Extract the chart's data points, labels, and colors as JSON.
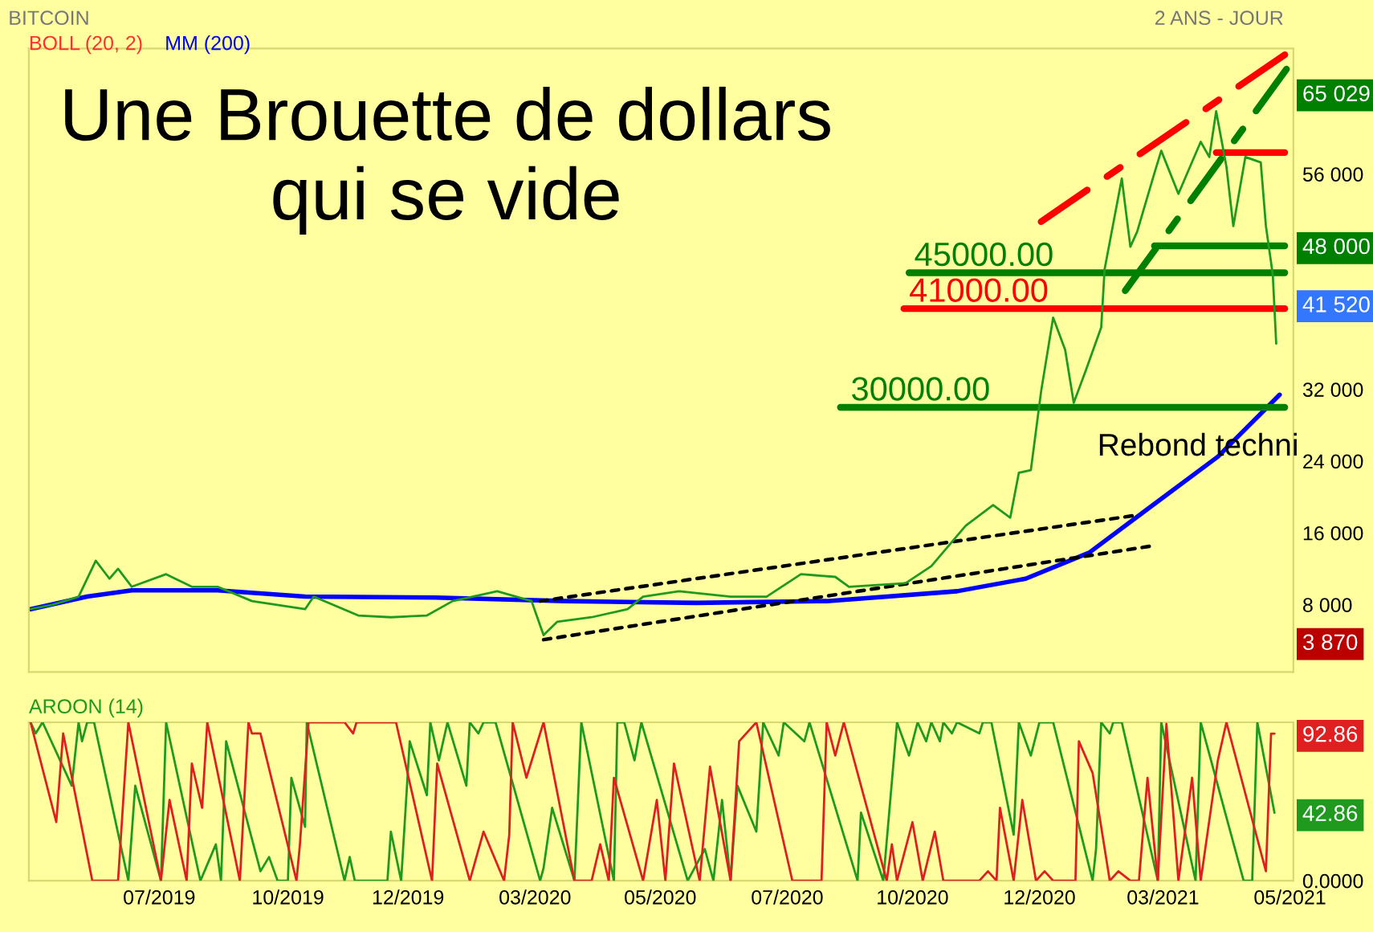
{
  "chart_data": [
    {
      "type": "line",
      "title": "BITCOIN",
      "subtitle": "2 ANS - JOUR",
      "xlim": [
        "2019-05-11",
        "2021-05-17"
      ],
      "ylim": [
        500,
        70000
      ],
      "yticks": [
        {
          "value": 8000,
          "label": "8 000"
        },
        {
          "value": 16000,
          "label": "16 000"
        },
        {
          "value": 24000,
          "label": "24 000"
        },
        {
          "value": 32000,
          "label": "32 000"
        },
        {
          "value": 48000,
          "label": "48 000"
        },
        {
          "value": 56000,
          "label": "56 000"
        },
        {
          "value": 65029,
          "label": "65 029"
        },
        {
          "value": 41520,
          "label": "41 520"
        },
        {
          "value": 3870,
          "label": "3 870"
        }
      ],
      "tick_labels": "y",
      "grid": false,
      "legend": false,
      "series": [
        {
          "color": "#1f9a1f",
          "x": [
            "2019-05-12",
            "2019-05-25",
            "2019-06-09",
            "2019-06-19",
            "2019-06-27",
            "2019-07-02",
            "2019-07-10",
            "2019-07-30",
            "2019-08-14",
            "2019-08-29",
            "2019-09-18",
            "2019-10-19",
            "2019-10-24",
            "2019-11-19",
            "2019-12-08",
            "2019-12-29",
            "2020-01-13",
            "2020-02-08",
            "2020-02-28",
            "2020-03-06",
            "2020-03-14",
            "2020-04-03",
            "2020-04-24",
            "2020-05-03",
            "2020-05-24",
            "2020-06-23",
            "2020-07-14",
            "2020-08-03",
            "2020-08-23",
            "2020-08-31",
            "2020-10-03",
            "2020-10-18",
            "2020-11-07",
            "2020-11-23",
            "2020-12-03",
            "2020-12-08",
            "2020-12-15",
            "2020-12-21",
            "2020-12-28",
            "2021-01-04",
            "2021-01-09",
            "2021-01-16",
            "2021-01-25",
            "2021-01-27",
            "2021-02-06",
            "2021-02-11",
            "2021-02-15",
            "2021-02-25",
            "2021-03-01",
            "2021-03-11",
            "2021-03-24",
            "2021-03-29",
            "2021-04-02",
            "2021-04-08",
            "2021-04-12",
            "2021-04-19",
            "2021-04-28",
            "2021-05-01",
            "2021-05-05",
            "2021-05-07"
          ],
          "values": [
            7500,
            8000,
            8900,
            12900,
            10900,
            12000,
            10000,
            11400,
            10000,
            10000,
            8400,
            7500,
            8900,
            6800,
            6600,
            6800,
            8400,
            9500,
            8400,
            4600,
            6100,
            6600,
            7500,
            8900,
            9500,
            8900,
            8900,
            11400,
            11100,
            10000,
            10400,
            12300,
            16800,
            19100,
            17700,
            22700,
            23000,
            31800,
            40000,
            36400,
            30500,
            34100,
            38900,
            45400,
            55500,
            47900,
            49600,
            56100,
            58600,
            53800,
            59600,
            57900,
            63000,
            56800,
            50200,
            57900,
            57300,
            50200,
            44800,
            37100
          ]
        },
        {
          "name": "MM (200)",
          "color": "#0000ff",
          "x": [
            "2019-05-12",
            "2019-06-14",
            "2019-07-10",
            "2019-08-29",
            "2019-10-19",
            "2020-01-03",
            "2020-03-19",
            "2020-06-03",
            "2020-08-18",
            "2020-11-02",
            "2020-12-12",
            "2021-01-18",
            "2021-02-22",
            "2021-04-03",
            "2021-05-09"
          ],
          "values": [
            7500,
            8900,
            9600,
            9600,
            8900,
            8800,
            8400,
            8200,
            8400,
            9500,
            10900,
            13800,
            18800,
            24500,
            31400
          ]
        },
        {
          "color": "#ff0000",
          "line_style": "dashed",
          "x": [
            "2020-12-21",
            "2021-05-12"
          ],
          "values": [
            50700,
            69300
          ]
        },
        {
          "color": "#008000",
          "line_style": "dashed",
          "x": [
            "2021-02-08",
            "2021-05-13"
          ],
          "values": [
            43000,
            67700
          ]
        },
        {
          "color": "#000000",
          "line_style": "dotted",
          "x": [
            "2020-03-04",
            "2021-02-12"
          ],
          "values": [
            8400,
            17900
          ]
        },
        {
          "color": "#000000",
          "line_style": "dotted",
          "x": [
            "2020-03-06",
            "2021-02-22"
          ],
          "values": [
            4100,
            14500
          ]
        },
        {
          "color": "#008000",
          "x": [
            "2020-10-05",
            "2021-05-12"
          ],
          "values": [
            45000,
            45000
          ]
        },
        {
          "color": "#ff0000",
          "x": [
            "2020-10-02",
            "2021-05-12"
          ],
          "values": [
            41000,
            41000
          ]
        },
        {
          "color": "#008000",
          "x": [
            "2020-08-26",
            "2021-05-12"
          ],
          "values": [
            30000,
            30000
          ]
        },
        {
          "color": "#008000",
          "x": [
            "2021-02-25",
            "2021-05-12"
          ],
          "values": [
            48000,
            48000
          ]
        },
        {
          "color": "#ff0000",
          "x": [
            "2021-04-02",
            "2021-05-12"
          ],
          "values": [
            58400,
            58400
          ]
        }
      ],
      "annotations": [
        "Une Brouette de dollars\nqui se vide",
        "BOLL (20, 2)",
        "Rebond techni",
        {
          "text": "45000.00",
          "x": "2020-10-08",
          "y": 45000
        },
        {
          "text": "41000.00",
          "x": "2020-10-05",
          "y": 41000
        },
        {
          "text": "30000.00",
          "x": "2020-09-01",
          "y": 30000
        }
      ]
    },
    {
      "type": "line",
      "title": "AROON (14)",
      "xlim": [
        "2019-05-11",
        "2021-05-17"
      ],
      "ylim": [
        0,
        100
      ],
      "xticks": [
        {
          "value": "2019-07-26",
          "label": "07/2019"
        },
        {
          "value": "2019-10-09",
          "label": "10/2019"
        },
        {
          "value": "2019-12-18",
          "label": "12/2019"
        },
        {
          "value": "2020-03-01",
          "label": "03/2020"
        },
        {
          "value": "2020-05-13",
          "label": "05/2020"
        },
        {
          "value": "2020-07-26",
          "label": "07/2020"
        },
        {
          "value": "2020-10-07",
          "label": "10/2020"
        },
        {
          "value": "2020-12-20",
          "label": "12/2020"
        },
        {
          "value": "2021-03-02",
          "label": "03/2021"
        },
        {
          "value": "2021-05-15",
          "label": "05/2021"
        }
      ],
      "yticks": [
        {
          "value": 0,
          "label": "0.0000"
        },
        {
          "value": 92.86,
          "label": "92.86"
        },
        {
          "value": 42.86,
          "label": "42.86"
        }
      ],
      "grid": false,
      "legend": false,
      "series": [
        {
          "color": "#1f9a1f",
          "x": [
            "2019-05-12",
            "2019-05-15",
            "2019-05-19",
            "2019-06-05",
            "2019-06-09",
            "2019-06-11",
            "2019-06-14",
            "2019-06-18",
            "2019-07-08",
            "2019-07-12",
            "2019-07-27",
            "2019-07-30",
            "2019-08-19",
            "2019-08-28",
            "2019-08-31",
            "2019-09-03",
            "2019-09-23",
            "2019-09-28",
            "2019-10-03",
            "2019-10-09",
            "2019-10-11",
            "2019-10-19",
            "2019-10-20",
            "2019-11-11",
            "2019-11-14",
            "2019-11-17",
            "2019-12-06",
            "2019-12-08",
            "2019-12-14",
            "2019-12-19",
            "2019-12-29",
            "2019-12-31",
            "2020-01-05",
            "2020-01-10",
            "2020-01-21",
            "2020-01-23",
            "2020-01-28",
            "2020-01-31",
            "2020-02-07",
            "2020-03-04",
            "2020-03-06",
            "2020-03-11",
            "2020-03-24",
            "2020-03-28",
            "2020-04-16",
            "2020-04-18",
            "2020-04-22",
            "2020-04-28",
            "2020-05-02",
            "2020-05-29",
            "2020-06-08",
            "2020-06-13",
            "2020-06-18",
            "2020-06-23",
            "2020-06-27",
            "2020-07-08",
            "2020-07-12",
            "2020-07-21",
            "2020-07-24",
            "2020-08-05",
            "2020-08-08",
            "2020-09-05",
            "2020-09-07",
            "2020-09-20",
            "2020-09-28",
            "2020-10-05",
            "2020-10-10",
            "2020-10-15",
            "2020-10-18",
            "2020-10-23",
            "2020-10-25",
            "2020-10-30",
            "2020-11-02",
            "2020-11-15",
            "2020-11-17",
            "2020-11-22",
            "2020-12-05",
            "2020-12-08",
            "2020-12-15",
            "2020-12-20",
            "2020-12-28",
            "2021-01-20",
            "2021-01-22",
            "2021-01-25",
            "2021-01-30",
            "2021-02-01",
            "2021-02-06",
            "2021-02-27",
            "2021-03-01",
            "2021-03-21",
            "2021-03-24",
            "2021-04-18",
            "2021-04-23",
            "2021-04-26",
            "2021-05-06"
          ],
          "values": [
            100,
            93,
            100,
            60,
            100,
            88,
            100,
            100,
            0,
            60,
            0,
            100,
            0,
            23,
            0,
            88,
            6,
            15,
            0,
            0,
            65,
            34,
            100,
            0,
            15,
            0,
            0,
            31,
            0,
            88,
            54,
            100,
            76,
            100,
            60,
            100,
            93,
            100,
            100,
            0,
            8,
            46,
            0,
            100,
            0,
            100,
            100,
            76,
            100,
            0,
            20,
            0,
            51,
            0,
            60,
            31,
            100,
            79,
            100,
            88,
            100,
            0,
            43,
            0,
            100,
            79,
            100,
            88,
            100,
            88,
            100,
            93,
            100,
            93,
            100,
            100,
            29,
            100,
            79,
            100,
            100,
            0,
            20,
            100,
            93,
            100,
            100,
            0,
            100,
            0,
            100,
            0,
            0,
            100,
            42.86
          ]
        },
        {
          "color": "#e02020",
          "x": [
            "2019-05-12",
            "2019-05-27",
            "2019-05-31",
            "2019-06-17",
            "2019-07-02",
            "2019-07-08",
            "2019-07-27",
            "2019-08-01",
            "2019-08-11",
            "2019-08-14",
            "2019-08-20",
            "2019-08-23",
            "2019-09-11",
            "2019-09-16",
            "2019-09-18",
            "2019-09-23",
            "2019-10-14",
            "2019-10-16",
            "2019-10-21",
            "2019-11-11",
            "2019-11-16",
            "2019-11-18",
            "2019-12-11",
            "2020-01-01",
            "2020-01-04",
            "2020-01-23",
            "2020-01-31",
            "2020-02-12",
            "2020-02-15",
            "2020-02-17",
            "2020-02-25",
            "2020-03-06",
            "2020-03-24",
            "2020-04-03",
            "2020-04-08",
            "2020-04-13",
            "2020-04-16",
            "2020-05-03",
            "2020-05-11",
            "2020-05-16",
            "2020-05-21",
            "2020-06-05",
            "2020-06-11",
            "2020-06-23",
            "2020-06-28",
            "2020-07-08",
            "2020-07-29",
            "2020-08-15",
            "2020-08-18",
            "2020-08-23",
            "2020-08-28",
            "2020-09-22",
            "2020-09-25",
            "2020-09-28",
            "2020-10-07",
            "2020-10-13",
            "2020-10-20",
            "2020-10-25",
            "2020-11-15",
            "2020-11-20",
            "2020-11-25",
            "2020-11-27",
            "2020-12-05",
            "2020-12-10",
            "2020-12-18",
            "2020-12-23",
            "2020-12-28",
            "2021-01-10",
            "2021-01-12",
            "2021-01-20",
            "2021-01-30",
            "2021-02-04",
            "2021-02-11",
            "2021-02-16",
            "2021-02-21",
            "2021-02-27",
            "2021-03-04",
            "2021-03-11",
            "2021-03-19",
            "2021-03-24",
            "2021-04-03",
            "2021-04-08",
            "2021-05-01",
            "2021-05-04",
            "2021-05-06"
          ],
          "values": [
            100,
            37,
            93,
            0,
            0,
            100,
            0,
            51,
            0,
            74,
            46,
            100,
            0,
            100,
            93,
            93,
            0,
            23,
            100,
            100,
            93,
            100,
            100,
            0,
            74,
            0,
            31,
            0,
            29,
            100,
            65,
            100,
            0,
            0,
            23,
            0,
            65,
            0,
            51,
            0,
            74,
            0,
            72,
            0,
            88,
            100,
            0,
            0,
            100,
            79,
            100,
            0,
            23,
            0,
            37,
            0,
            31,
            0,
            0,
            6,
            0,
            46,
            0,
            51,
            0,
            6,
            0,
            0,
            88,
            68,
            0,
            6,
            0,
            0,
            65,
            0,
            99,
            0,
            65,
            0,
            76,
            100,
            6,
            92.86,
            92.86
          ]
        }
      ]
    }
  ]
}
